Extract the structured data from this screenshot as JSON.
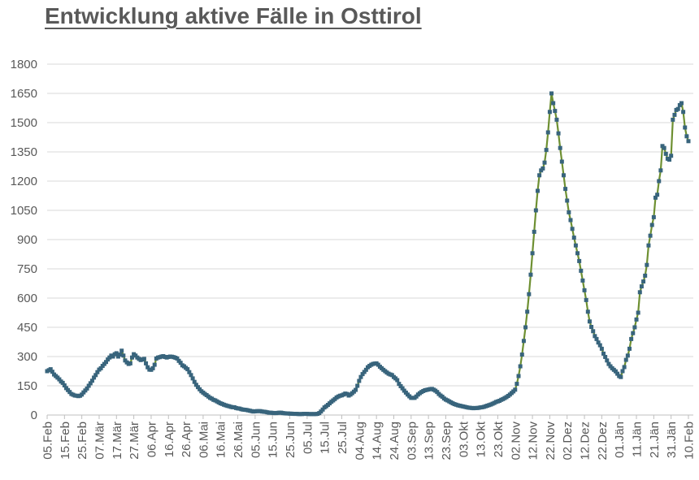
{
  "title": "Entwicklung aktive Fälle in Osttirol",
  "colors": {
    "title": "#595959",
    "axis_labels": "#595959",
    "gridline": "#d9d9d9",
    "axis_line": "#bfbfbf",
    "background": "#ffffff",
    "series_line": "#6e9032",
    "series_marker": "#38647c"
  },
  "chart_data": {
    "type": "line",
    "title": "Entwicklung aktive Fälle in Osttirol",
    "grid": "horizontal",
    "legend": "none",
    "markers": "square",
    "x_axis": {
      "tick_labels": [
        "05.Feb",
        "15.Feb",
        "25.Feb",
        "07.Mär",
        "17.Mär",
        "27.Mär",
        "06.Apr",
        "16.Apr",
        "26.Apr",
        "06.Mai",
        "16.Mai",
        "26.Mai",
        "05.Jun",
        "15.Jun",
        "25.Jun",
        "05.Jul",
        "15.Jul",
        "25.Jul",
        "04.Aug",
        "14.Aug",
        "24.Aug",
        "03.Sep",
        "13.Sep",
        "23.Sep",
        "03.Okt",
        "13.Okt",
        "23.Okt",
        "02.Nov",
        "12.Nov",
        "22.Nov",
        "02.Dez",
        "12.Dez",
        "22.Dez",
        "01.Jän",
        "11.Jän",
        "21.Jän",
        "31.Jän",
        "10.Feb"
      ],
      "days_per_tick": 10,
      "total_days": 370
    },
    "y_axis": {
      "min": 0,
      "max": 1800,
      "tick_step": 150,
      "ticks": [
        0,
        150,
        300,
        450,
        600,
        750,
        900,
        1050,
        1200,
        1350,
        1500,
        1650,
        1800
      ]
    },
    "series": [
      {
        "start_label": "05.Feb",
        "values_daily": [
          225,
          230,
          235,
          222,
          208,
          200,
          192,
          183,
          172,
          165,
          152,
          138,
          128,
          118,
          108,
          104,
          100,
          99,
          97,
          99,
          105,
          116,
          126,
          136,
          150,
          163,
          176,
          192,
          205,
          220,
          233,
          240,
          252,
          262,
          272,
          285,
          295,
          305,
          300,
          312,
          317,
          300,
          310,
          330,
          305,
          280,
          270,
          262,
          265,
          295,
          312,
          305,
          295,
          288,
          282,
          285,
          288,
          265,
          245,
          233,
          232,
          240,
          258,
          290,
          295,
          297,
          300,
          302,
          298,
          295,
          298,
          300,
          299,
          297,
          294,
          290,
          278,
          268,
          255,
          250,
          242,
          235,
          220,
          205,
          188,
          170,
          155,
          143,
          132,
          122,
          115,
          108,
          102,
          95,
          88,
          84,
          78,
          75,
          70,
          65,
          60,
          57,
          53,
          50,
          47,
          45,
          42,
          40,
          40,
          36,
          34,
          33,
          30,
          28,
          27,
          26,
          24,
          22,
          20,
          18,
          19,
          20,
          20,
          20,
          18,
          17,
          16,
          14,
          12,
          12,
          11,
          10,
          10,
          11,
          12,
          12,
          10,
          9,
          8,
          8,
          7,
          7,
          6,
          6,
          6,
          5,
          5,
          5,
          6,
          6,
          6,
          5,
          5,
          5,
          5,
          5,
          6,
          10,
          18,
          28,
          39,
          45,
          52,
          60,
          68,
          75,
          82,
          90,
          95,
          99,
          101,
          105,
          110,
          108,
          100,
          105,
          112,
          120,
          129,
          150,
          175,
          195,
          210,
          221,
          232,
          245,
          252,
          258,
          262,
          264,
          265,
          258,
          248,
          240,
          232,
          225,
          218,
          212,
          208,
          205,
          195,
          188,
          179,
          160,
          148,
          137,
          125,
          115,
          105,
          96,
          88,
          88,
          88,
          95,
          105,
          112,
          118,
          123,
          127,
          129,
          131,
          133,
          134,
          130,
          125,
          118,
          108,
          100,
          94,
          85,
          79,
          75,
          70,
          65,
          60,
          56,
          53,
          50,
          48,
          46,
          44,
          42,
          40,
          38,
          37,
          36,
          35,
          36,
          36,
          37,
          39,
          40,
          42,
          45,
          48,
          51,
          54,
          58,
          62,
          67,
          70,
          73,
          78,
          82,
          87,
          92,
          98,
          105,
          113,
          121,
          130,
          160,
          200,
          250,
          310,
          380,
          450,
          530,
          620,
          720,
          830,
          940,
          1050,
          1150,
          1230,
          1255,
          1265,
          1295,
          1360,
          1450,
          1555,
          1650,
          1600,
          1560,
          1515,
          1445,
          1370,
          1300,
          1230,
          1160,
          1100,
          1040,
          1000,
          955,
          910,
          870,
          830,
          790,
          740,
          690,
          640,
          590,
          530,
          480,
          452,
          430,
          405,
          390,
          372,
          358,
          340,
          315,
          298,
          280,
          262,
          250,
          240,
          232,
          224,
          212,
          200,
          195,
          225,
          246,
          283,
          305,
          340,
          390,
          420,
          450,
          490,
          525,
          630,
          660,
          685,
          715,
          770,
          870,
          920,
          975,
          1015,
          1115,
          1130,
          1200,
          1255,
          1380,
          1370,
          1340,
          1315,
          1310,
          1330,
          1515,
          1540,
          1565,
          1570,
          1590,
          1600,
          1555,
          1475,
          1430,
          1405
        ]
      }
    ]
  }
}
